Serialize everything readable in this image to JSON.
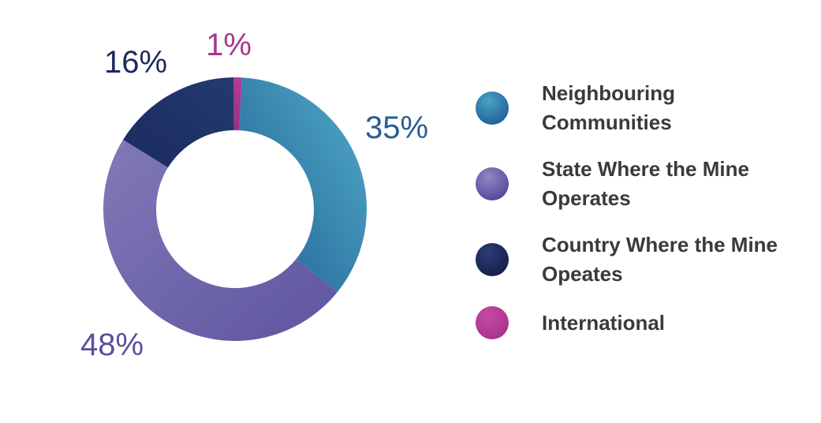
{
  "chart_data": {
    "type": "pie",
    "variant": "donut",
    "title": "",
    "categories": [
      "Neighbouring Communities",
      "State Where the Mine Operates",
      "Country Where the Mine Opeates",
      "International"
    ],
    "values": [
      35,
      48,
      16,
      1
    ],
    "value_labels": [
      "35%",
      "48%",
      "16%",
      "1%"
    ],
    "colors": [
      "#2f7fae",
      "#6a5fa7",
      "#1d2c5c",
      "#b43a93"
    ],
    "legend_placement": "right",
    "legend": [
      {
        "label": "Neighbouring Communities",
        "color": "#2f7fae"
      },
      {
        "label": "State Where the Mine Operates",
        "color": "#5b50a0"
      },
      {
        "label": "Country Where the Mine Opeates",
        "color": "#1a2450"
      },
      {
        "label": "International",
        "color": "#b23a92"
      }
    ]
  }
}
